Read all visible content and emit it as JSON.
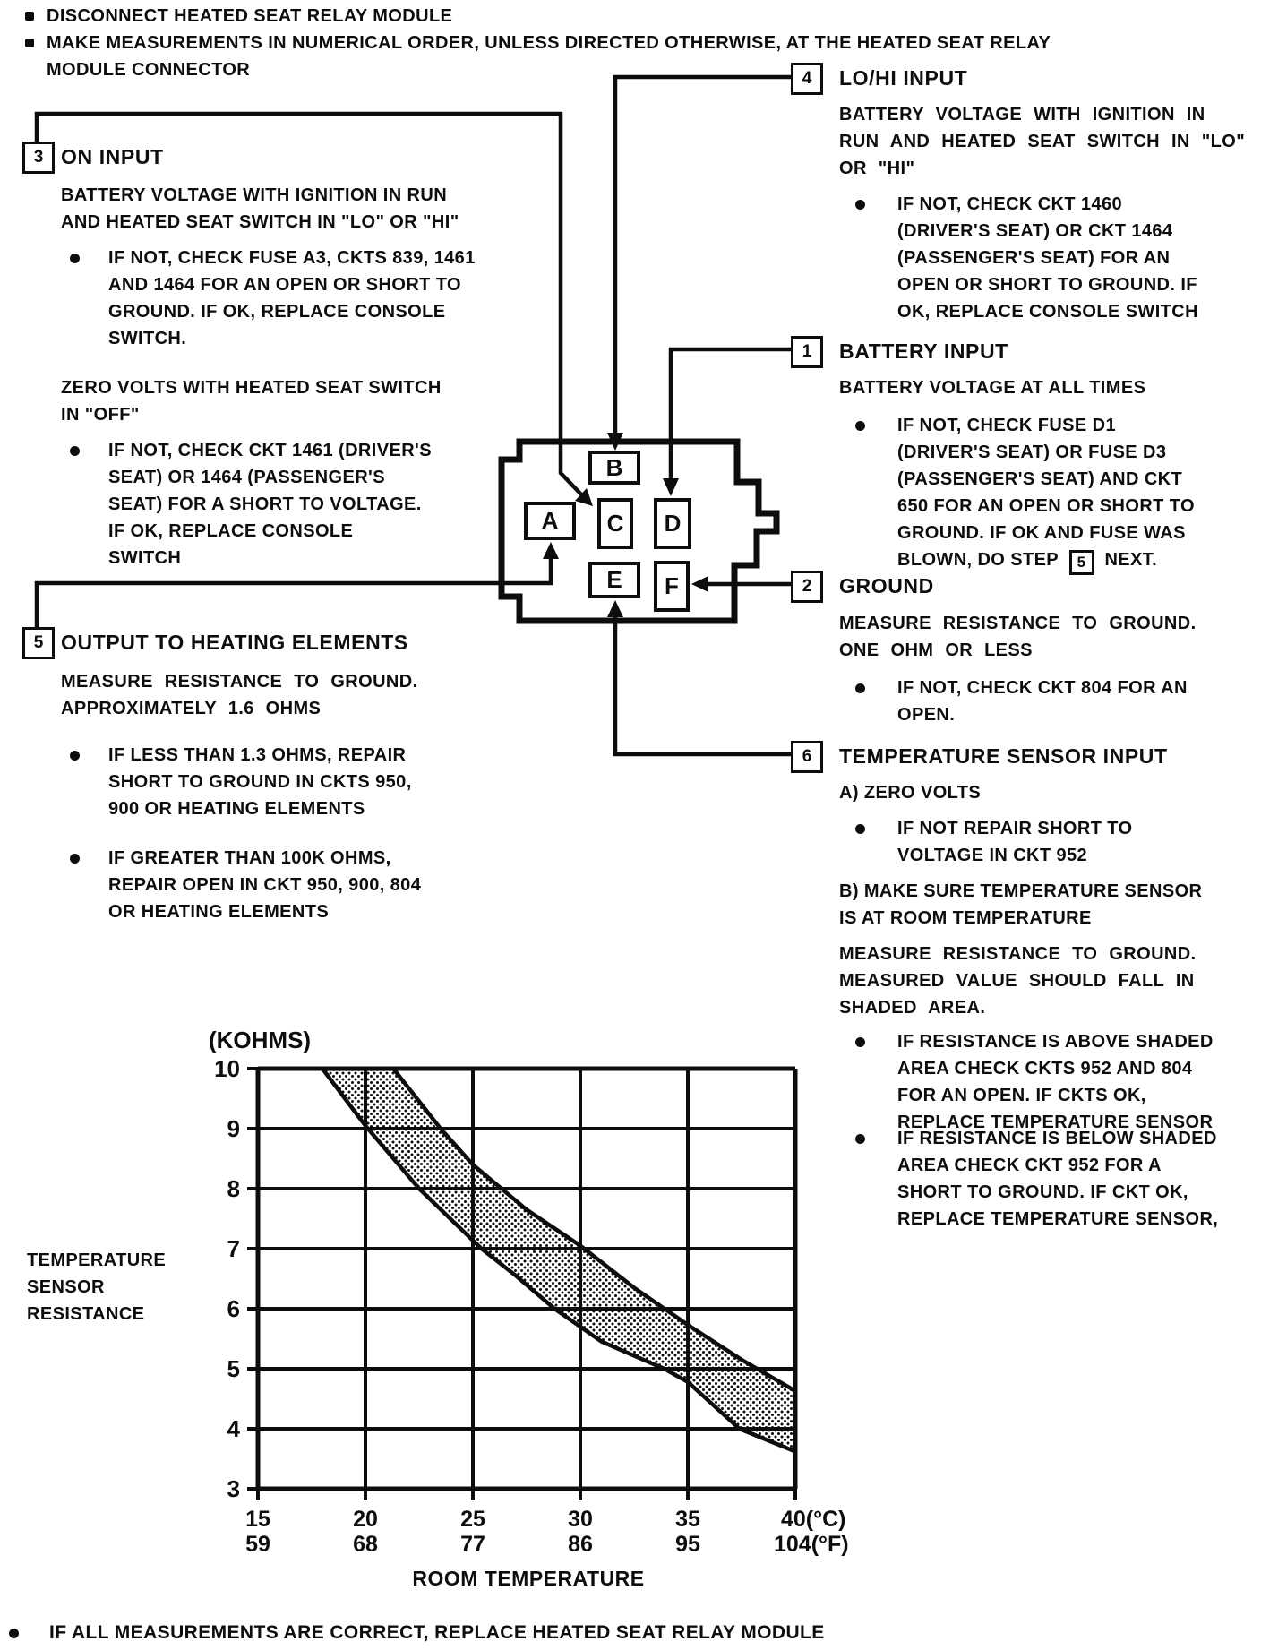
{
  "colors": {
    "ink": "#0d0d0d",
    "paper": "#ffffff"
  },
  "top_notes": {
    "note1_lines": [
      "DISCONNECT HEATED SEAT RELAY MODULE"
    ],
    "note2_lines": [
      "MAKE MEASUREMENTS IN NUMERICAL ORDER, UNLESS DIRECTED OTHERWISE, AT THE HEATED SEAT RELAY",
      "MODULE CONNECTOR"
    ]
  },
  "callouts": {
    "c3": {
      "num": "3",
      "title": "ON INPUT",
      "para1": [
        "BATTERY VOLTAGE WITH IGNITION IN RUN",
        "AND HEATED SEAT SWITCH IN \"LO\" OR \"HI\""
      ],
      "b1": [
        "IF NOT, CHECK FUSE A3, CKTS 839, 1461",
        "AND 1464 FOR AN OPEN OR SHORT TO",
        "GROUND. IF OK, REPLACE CONSOLE",
        "SWITCH."
      ],
      "para2": [
        "ZERO VOLTS WITH HEATED SEAT SWITCH",
        "IN \"OFF\""
      ],
      "b2": [
        "IF NOT, CHECK CKT 1461 (DRIVER'S",
        "SEAT) OR 1464 (PASSENGER'S",
        "SEAT) FOR A SHORT TO VOLTAGE.",
        "IF OK, REPLACE CONSOLE",
        "SWITCH"
      ]
    },
    "c5": {
      "num": "5",
      "title": "OUTPUT TO HEATING ELEMENTS",
      "para1": [
        "MEASURE RESISTANCE TO GROUND.",
        "APPROXIMATELY 1.6 OHMS"
      ],
      "b1": [
        "IF LESS THAN 1.3 OHMS, REPAIR",
        "SHORT TO GROUND IN CKTS 950,",
        "900 OR HEATING ELEMENTS"
      ],
      "b2": [
        "IF GREATER THAN 100K OHMS,",
        "REPAIR OPEN IN CKT 950, 900, 804",
        "OR HEATING ELEMENTS"
      ]
    },
    "c4": {
      "num": "4",
      "title": "LO/HI INPUT",
      "para1": [
        "BATTERY VOLTAGE WITH IGNITION IN",
        "RUN AND HEATED SEAT SWITCH IN \"LO\"",
        "OR \"HI\""
      ],
      "b1": [
        "IF NOT, CHECK CKT 1460",
        "(DRIVER'S SEAT) OR CKT 1464",
        "(PASSENGER'S SEAT) FOR AN",
        "OPEN OR SHORT TO GROUND. IF",
        "OK, REPLACE CONSOLE SWITCH"
      ]
    },
    "c1": {
      "num": "1",
      "title": "BATTERY INPUT",
      "para1": [
        "BATTERY VOLTAGE AT ALL TIMES"
      ],
      "b1": [
        "IF NOT, CHECK FUSE D1",
        "(DRIVER'S SEAT) OR FUSE D3",
        "(PASSENGER'S SEAT) AND CKT",
        "650 FOR AN OPEN OR SHORT TO",
        "GROUND. IF OK AND FUSE WAS",
        "BLOWN, DO STEP |5| NEXT."
      ]
    },
    "c2": {
      "num": "2",
      "title": "GROUND",
      "para1": [
        "MEASURE RESISTANCE TO GROUND.",
        "ONE OHM OR LESS"
      ],
      "b1": [
        "IF NOT, CHECK CKT 804 FOR AN",
        "OPEN."
      ]
    },
    "c6": {
      "num": "6",
      "title": "TEMPERATURE SENSOR INPUT",
      "paraA": [
        "A) ZERO VOLTS"
      ],
      "b1": [
        "IF NOT REPAIR SHORT TO",
        "VOLTAGE IN CKT 952"
      ],
      "paraB": [
        "B) MAKE SURE TEMPERATURE SENSOR",
        "IS AT ROOM TEMPERATURE"
      ],
      "para2": [
        "MEASURE RESISTANCE TO GROUND.",
        "MEASURED VALUE SHOULD FALL IN",
        "SHADED AREA."
      ],
      "b2": [
        "IF RESISTANCE IS ABOVE SHADED",
        "AREA CHECK CKTS 952 AND 804",
        "FOR AN OPEN. IF CKTS OK,",
        "REPLACE TEMPERATURE SENSOR"
      ],
      "b3": [
        "IF RESISTANCE IS BELOW SHADED",
        "AREA CHECK CKT 952 FOR A",
        "SHORT TO GROUND. IF CKT OK,",
        "REPLACE TEMPERATURE SENSOR,"
      ]
    }
  },
  "connector": {
    "pins": [
      "A",
      "B",
      "C",
      "D",
      "E",
      "F"
    ]
  },
  "chart_data": {
    "type": "area",
    "title": "",
    "ylabel_lines": [
      "TEMPERATURE",
      "SENSOR",
      "RESISTANCE"
    ],
    "y_unit": "(KOHMS)",
    "xlabel": "ROOM TEMPERATURE",
    "y_ticks": [
      3,
      4,
      5,
      6,
      7,
      8,
      9,
      10
    ],
    "x_ticks_c": [
      "15",
      "20",
      "25",
      "30",
      "35",
      "40"
    ],
    "x_ticks_f": [
      "59",
      "68",
      "77",
      "86",
      "95",
      "104"
    ],
    "x_unit_c": "(°C)",
    "x_unit_f": "(°F)",
    "xlim": [
      15,
      40
    ],
    "ylim": [
      3,
      10
    ],
    "grid": true,
    "legend": "none",
    "series": [
      {
        "name": "upper_limit_kohms",
        "points": [
          [
            21.3,
            10
          ],
          [
            23.5,
            9.0
          ],
          [
            25,
            8.4
          ],
          [
            27.5,
            7.65
          ],
          [
            30,
            7.05
          ],
          [
            32.5,
            6.35
          ],
          [
            35,
            5.73
          ],
          [
            37.5,
            5.15
          ],
          [
            40,
            4.63
          ]
        ]
      },
      {
        "name": "lower_limit_kohms",
        "points": [
          [
            18.0,
            10
          ],
          [
            20,
            9.05
          ],
          [
            22.5,
            8.0
          ],
          [
            25.4,
            7.0
          ],
          [
            27,
            6.55
          ],
          [
            28.8,
            6.0
          ],
          [
            31,
            5.45
          ],
          [
            33.9,
            5.0
          ],
          [
            35,
            4.78
          ],
          [
            37.4,
            4.0
          ],
          [
            40,
            3.62
          ]
        ]
      }
    ],
    "shaded_region": "between upper_limit_kohms and lower_limit_kohms"
  },
  "footer_note": "IF ALL MEASUREMENTS ARE CORRECT, REPLACE HEATED SEAT RELAY MODULE"
}
